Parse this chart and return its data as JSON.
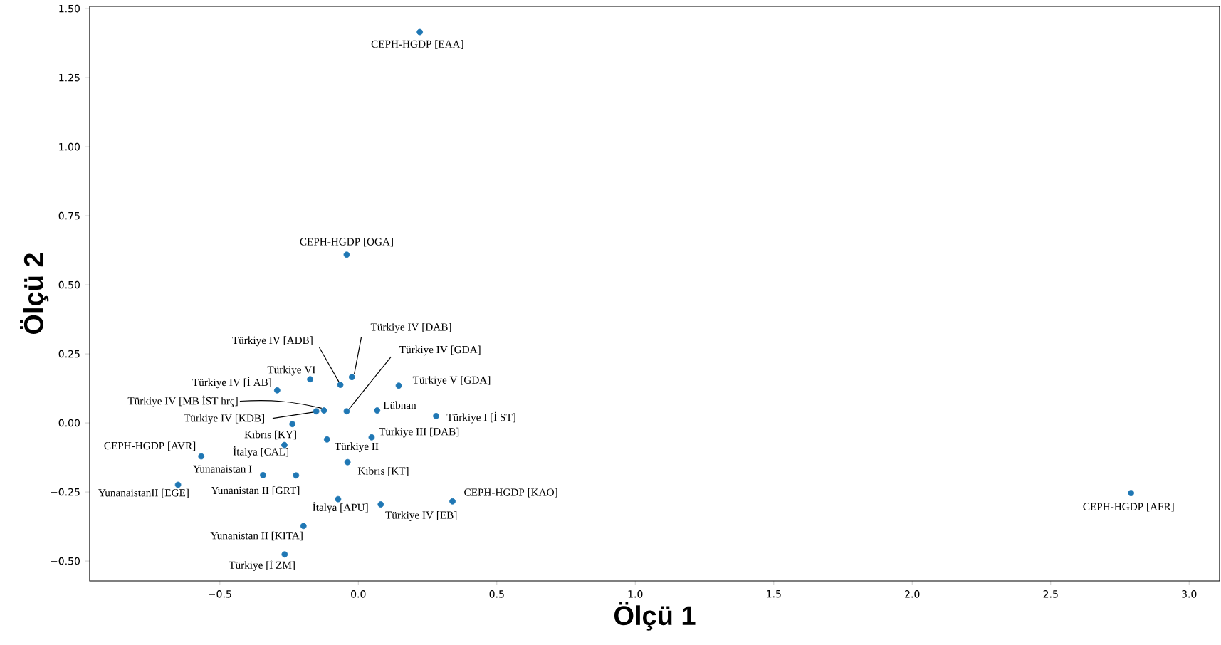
{
  "chart_data": {
    "type": "scatter",
    "xlabel": "Ölçü 1",
    "ylabel": "Ölçü 2",
    "x": [
      0.222,
      -0.042,
      -0.023,
      -0.065,
      -0.042,
      -0.174,
      -0.293,
      0.146,
      -0.124,
      -0.152,
      0.068,
      0.281,
      -0.238,
      0.048,
      -0.113,
      -0.267,
      -0.567,
      -0.039,
      -0.344,
      -0.225,
      -0.651,
      -0.073,
      0.081,
      0.34,
      -0.198,
      -0.266,
      2.79
    ],
    "values": [
      1.415,
      0.609,
      0.166,
      0.138,
      0.042,
      0.158,
      0.118,
      0.135,
      0.045,
      0.042,
      0.045,
      0.025,
      -0.004,
      -0.052,
      -0.06,
      -0.08,
      -0.121,
      -0.142,
      -0.189,
      -0.19,
      -0.224,
      -0.276,
      -0.295,
      -0.284,
      -0.373,
      -0.476,
      -0.254
    ],
    "color": "#1f77b4",
    "marker": "circle",
    "xlim": [
      -0.97,
      3.11
    ],
    "ylim": [
      -0.572,
      1.508
    ],
    "xticks": [
      {
        "value": -0.5,
        "label": "−0.5"
      },
      {
        "value": 0.0,
        "label": "0.0"
      },
      {
        "value": 0.5,
        "label": "0.5"
      },
      {
        "value": 1.0,
        "label": "1.0"
      },
      {
        "value": 1.5,
        "label": "1.5"
      },
      {
        "value": 2.0,
        "label": "2.0"
      },
      {
        "value": 2.5,
        "label": "2.5"
      },
      {
        "value": 3.0,
        "label": "3.0"
      }
    ],
    "yticks": [
      {
        "value": -0.5,
        "label": "−0.50"
      },
      {
        "value": -0.25,
        "label": "−0.25"
      },
      {
        "value": 0.0,
        "label": "0.00"
      },
      {
        "value": 0.25,
        "label": "0.25"
      },
      {
        "value": 0.5,
        "label": "0.50"
      },
      {
        "value": 0.75,
        "label": "0.75"
      },
      {
        "value": 1.0,
        "label": "1.00"
      },
      {
        "value": 1.25,
        "label": "1.25"
      },
      {
        "value": 1.5,
        "label": "1.50"
      }
    ],
    "annotations": [
      {
        "text": "CEPH-HGDP [EAA]",
        "x": 0.222,
        "y": 1.415
      },
      {
        "text": "CEPH-HGDP [OGA]",
        "x": -0.042,
        "y": 0.609
      },
      {
        "text": "Türkiye IV [DAB]",
        "x": -0.023,
        "y": 0.166
      },
      {
        "text": "Türkiye IV [ADB]",
        "x": -0.065,
        "y": 0.138
      },
      {
        "text": "Türkiye IV [GDA]",
        "x": -0.042,
        "y": 0.042
      },
      {
        "text": "Türkiye VI",
        "x": -0.174,
        "y": 0.158
      },
      {
        "text": "Türkiye IV [İ AB]",
        "x": -0.293,
        "y": 0.118
      },
      {
        "text": "Türkiye V [GDA]",
        "x": 0.146,
        "y": 0.135
      },
      {
        "text": "Türkiye IV [MB İST hrç]",
        "x": -0.124,
        "y": 0.045
      },
      {
        "text": "Türkiye IV [KDB]",
        "x": -0.152,
        "y": 0.042
      },
      {
        "text": "Lübnan",
        "x": 0.068,
        "y": 0.045
      },
      {
        "text": "Türkiye I [İ ST]",
        "x": 0.281,
        "y": 0.025
      },
      {
        "text": "Kıbrıs [KY]",
        "x": -0.238,
        "y": -0.004
      },
      {
        "text": "Türkiye III [DAB]",
        "x": 0.048,
        "y": -0.052
      },
      {
        "text": "Türkiye II",
        "x": -0.113,
        "y": -0.06
      },
      {
        "text": "İtalya [CAL]",
        "x": -0.267,
        "y": -0.08
      },
      {
        "text": "CEPH-HGDP [AVR]",
        "x": -0.567,
        "y": -0.121
      },
      {
        "text": "Kıbrıs [KT]",
        "x": -0.039,
        "y": -0.142
      },
      {
        "text": "Yunanaistan I",
        "x": -0.344,
        "y": -0.189
      },
      {
        "text": "Yunanistan II [GRT]",
        "x": -0.225,
        "y": -0.19
      },
      {
        "text": "YunanaistanII [EGE]",
        "x": -0.651,
        "y": -0.224
      },
      {
        "text": "İtalya [APU]",
        "x": -0.073,
        "y": -0.276
      },
      {
        "text": "Türkiye IV [EB]",
        "x": 0.081,
        "y": -0.295
      },
      {
        "text": "CEPH-HGDP [KAO]",
        "x": 0.34,
        "y": -0.284
      },
      {
        "text": "Yunanistan II [KITA]",
        "x": -0.198,
        "y": -0.373
      },
      {
        "text": "Türkiye [İ ZM]",
        "x": -0.266,
        "y": -0.476
      },
      {
        "text": "CEPH-HGDP [AFR]",
        "x": 2.79,
        "y": -0.254
      }
    ]
  }
}
